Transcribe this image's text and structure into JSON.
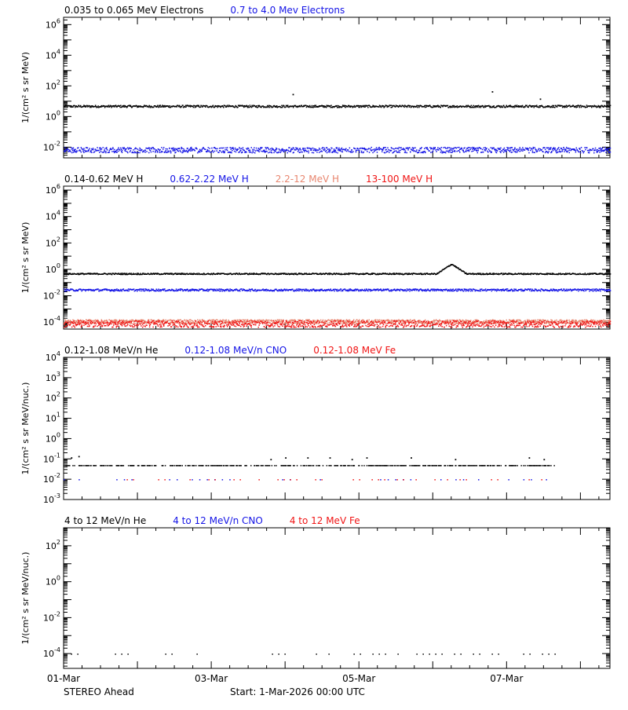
{
  "colors": {
    "black": "#000000",
    "blue": "#1414e6",
    "salmon": "#e8866f",
    "red": "#f01414"
  },
  "footer": {
    "spacecraft": "STEREO Ahead",
    "start": "Start:  1-Mar-2026 00:00 UTC"
  },
  "chart_data": [
    {
      "type": "scatter",
      "title": "",
      "ylabel": "1/(cm² s sr MeV)",
      "yscale": "log",
      "ylim": [
        0.002,
        3000000
      ],
      "xlim": [
        0,
        7.4
      ],
      "x_tick_labels": [
        "01-Mar",
        "03-Mar",
        "05-Mar",
        "07-Mar"
      ],
      "x_tick_days": [
        0,
        2,
        4,
        6
      ],
      "y_ticks": [
        {
          "value": 0.01,
          "mant": "10",
          "exp": "-2"
        },
        {
          "value": 1,
          "mant": "10",
          "exp": "0"
        },
        {
          "value": 100,
          "mant": "10",
          "exp": "2"
        },
        {
          "value": 10000,
          "mant": "10",
          "exp": "4"
        },
        {
          "value": 1000000,
          "mant": "10",
          "exp": "6"
        }
      ],
      "series": [
        {
          "name": "0.035 to 0.065 MeV Electrons",
          "color": "#000000",
          "level": 5.0,
          "spread": 0.07,
          "density": 1,
          "start": 0,
          "end": 7.4,
          "bumps": [],
          "outliers": [
            {
              "x": 3.1,
              "y": 30
            },
            {
              "x": 5.8,
              "y": 45
            },
            {
              "x": 6.45,
              "y": 15
            }
          ]
        },
        {
          "name": "0.7 to 4.0 Mev Electrons",
          "color": "#1414e6",
          "level": 0.007,
          "spread": 0.18,
          "density": 2,
          "start": 0,
          "end": 7.4,
          "bumps": [],
          "outliers": []
        }
      ]
    },
    {
      "type": "scatter",
      "title": "",
      "ylabel": "1/(cm² s sr MeV)",
      "yscale": "log",
      "ylim": [
        3e-05,
        2000000
      ],
      "xlim": [
        0,
        7.4
      ],
      "x_tick_labels": [
        "01-Mar",
        "03-Mar",
        "05-Mar",
        "07-Mar"
      ],
      "x_tick_days": [
        0,
        2,
        4,
        6
      ],
      "y_ticks": [
        {
          "value": 0.0001,
          "mant": "10",
          "exp": "-4"
        },
        {
          "value": 0.01,
          "mant": "10",
          "exp": "-2"
        },
        {
          "value": 1,
          "mant": "10",
          "exp": "0"
        },
        {
          "value": 100,
          "mant": "10",
          "exp": "2"
        },
        {
          "value": 10000,
          "mant": "10",
          "exp": "4"
        },
        {
          "value": 1000000,
          "mant": "10",
          "exp": "6"
        }
      ],
      "series": [
        {
          "name": "0.14-0.62 MeV H",
          "color": "#000000",
          "level": 0.5,
          "spread": 0.05,
          "density": 1,
          "start": 0,
          "end": 7.4,
          "bumps": [
            {
              "from": 5.05,
              "to": 5.45,
              "peak": 5.5
            }
          ],
          "outliers": []
        },
        {
          "name": "0.62-2.22 MeV H",
          "color": "#1414e6",
          "level": 0.03,
          "spread": 0.08,
          "density": 1,
          "start": 0,
          "end": 7.4,
          "bumps": [],
          "outliers": []
        },
        {
          "name": "2.2-12 MeV H",
          "color": "#e8866f",
          "level": 0.00012,
          "spread": 0.15,
          "density": 1,
          "start": 0,
          "end": 7.4,
          "bumps": [],
          "outliers": []
        },
        {
          "name": "13-100 MeV H",
          "color": "#f01414",
          "level": 8e-05,
          "spread": 0.25,
          "density": 2,
          "start": 0,
          "end": 7.4,
          "bumps": [],
          "outliers": []
        }
      ]
    },
    {
      "type": "scatter",
      "title": "",
      "ylabel": "1/(cm² s sr MeV/nuc.)",
      "yscale": "log",
      "ylim": [
        0.001,
        10000
      ],
      "xlim": [
        0,
        7.4
      ],
      "x_tick_labels": [
        "01-Mar",
        "03-Mar",
        "05-Mar",
        "07-Mar"
      ],
      "x_tick_days": [
        0,
        2,
        4,
        6
      ],
      "y_ticks": [
        {
          "value": 0.001,
          "mant": "10",
          "exp": "-3"
        },
        {
          "value": 0.01,
          "mant": "10",
          "exp": "-2"
        },
        {
          "value": 0.1,
          "mant": "10",
          "exp": "-1"
        },
        {
          "value": 1,
          "mant": "10",
          "exp": "0"
        },
        {
          "value": 10,
          "mant": "10",
          "exp": "1"
        },
        {
          "value": 100,
          "mant": "10",
          "exp": "2"
        },
        {
          "value": 1000,
          "mant": "10",
          "exp": "3"
        },
        {
          "value": 10000,
          "mant": "10",
          "exp": "4"
        }
      ],
      "series": [
        {
          "name": "0.12-1.08 MeV/n He",
          "color": "#000000",
          "level": 0.05,
          "spread": 0.0,
          "density": 1,
          "start": 0,
          "end": 6.65,
          "bumps": [],
          "outliers": [
            {
              "x": 0.1,
              "y": 0.12
            },
            {
              "x": 0.2,
              "y": 0.14
            },
            {
              "x": 2.8,
              "y": 0.1
            },
            {
              "x": 3.0,
              "y": 0.12
            },
            {
              "x": 3.3,
              "y": 0.12
            },
            {
              "x": 3.6,
              "y": 0.12
            },
            {
              "x": 3.9,
              "y": 0.1
            },
            {
              "x": 4.1,
              "y": 0.12
            },
            {
              "x": 4.7,
              "y": 0.12
            },
            {
              "x": 5.3,
              "y": 0.1
            },
            {
              "x": 6.3,
              "y": 0.12
            },
            {
              "x": 6.5,
              "y": 0.1
            }
          ]
        },
        {
          "name": "0.12-1.08 MeV/n CNO",
          "color": "#1414e6",
          "level": 0.01,
          "spread": 0.0,
          "density": 6,
          "start": 0,
          "end": 6.65,
          "bumps": [],
          "outliers": []
        },
        {
          "name": "0.12-1.08 MeV Fe",
          "color": "#f01414",
          "level": 0.01,
          "spread": 0.0,
          "density": 5,
          "start": 0.6,
          "end": 6.6,
          "bumps": [],
          "outliers": []
        }
      ]
    },
    {
      "type": "scatter",
      "title": "",
      "ylabel": "1/(cm² s sr MeV/nuc.)",
      "yscale": "log",
      "ylim": [
        1.5e-05,
        1000
      ],
      "xlim": [
        0,
        7.4
      ],
      "x_tick_labels": [
        "01-Mar",
        "03-Mar",
        "05-Mar",
        "07-Mar"
      ],
      "x_tick_days": [
        0,
        2,
        4,
        6
      ],
      "y_ticks": [
        {
          "value": 0.0001,
          "mant": "10",
          "exp": "-4"
        },
        {
          "value": 0.01,
          "mant": "10",
          "exp": "-2"
        },
        {
          "value": 1,
          "mant": "10",
          "exp": "0"
        },
        {
          "value": 100,
          "mant": "10",
          "exp": "2"
        }
      ],
      "series": [
        {
          "name": "4 to 12 MeV/n He",
          "color": "#000000",
          "level": 0.0001,
          "spread": 0.0,
          "density": 5,
          "start": 0.1,
          "end": 6.85,
          "bumps": [],
          "outliers": []
        },
        {
          "name": "4 to 12 MeV/n CNO",
          "color": "#1414e6",
          "level": 0.0001,
          "spread": 0.0,
          "density": 0,
          "start": 0,
          "end": 0,
          "bumps": [],
          "outliers": []
        },
        {
          "name": "4 to 12 MeV Fe",
          "color": "#f01414",
          "level": 0.0001,
          "spread": 0.0,
          "density": 0,
          "start": 0,
          "end": 0,
          "bumps": [],
          "outliers": []
        }
      ]
    }
  ]
}
